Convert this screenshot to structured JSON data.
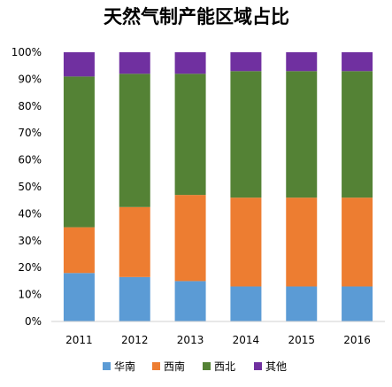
{
  "chart_data": {
    "type": "bar",
    "stacked": true,
    "title": "天然气制产能区域占比",
    "xlabel": "",
    "ylabel": "",
    "ylim": [
      0,
      100
    ],
    "y_ticks": [
      "0%",
      "10%",
      "20%",
      "30%",
      "40%",
      "50%",
      "60%",
      "70%",
      "80%",
      "90%",
      "100%"
    ],
    "grid": false,
    "legend_position": "bottom",
    "categories": [
      "2011",
      "2012",
      "2013",
      "2014",
      "2015",
      "2016"
    ],
    "series": [
      {
        "name": "华南",
        "color": "#5B9BD5",
        "values": [
          18,
          16.5,
          15,
          13,
          13,
          13
        ]
      },
      {
        "name": "西南",
        "color": "#ED7D31",
        "values": [
          17,
          26,
          32,
          33,
          33,
          33
        ]
      },
      {
        "name": "西北",
        "color": "#548235",
        "values": [
          56,
          49.5,
          45,
          47,
          47,
          47
        ]
      },
      {
        "name": "其他",
        "color": "#7030A0",
        "values": [
          9,
          8,
          8,
          7,
          7,
          7
        ]
      }
    ]
  }
}
